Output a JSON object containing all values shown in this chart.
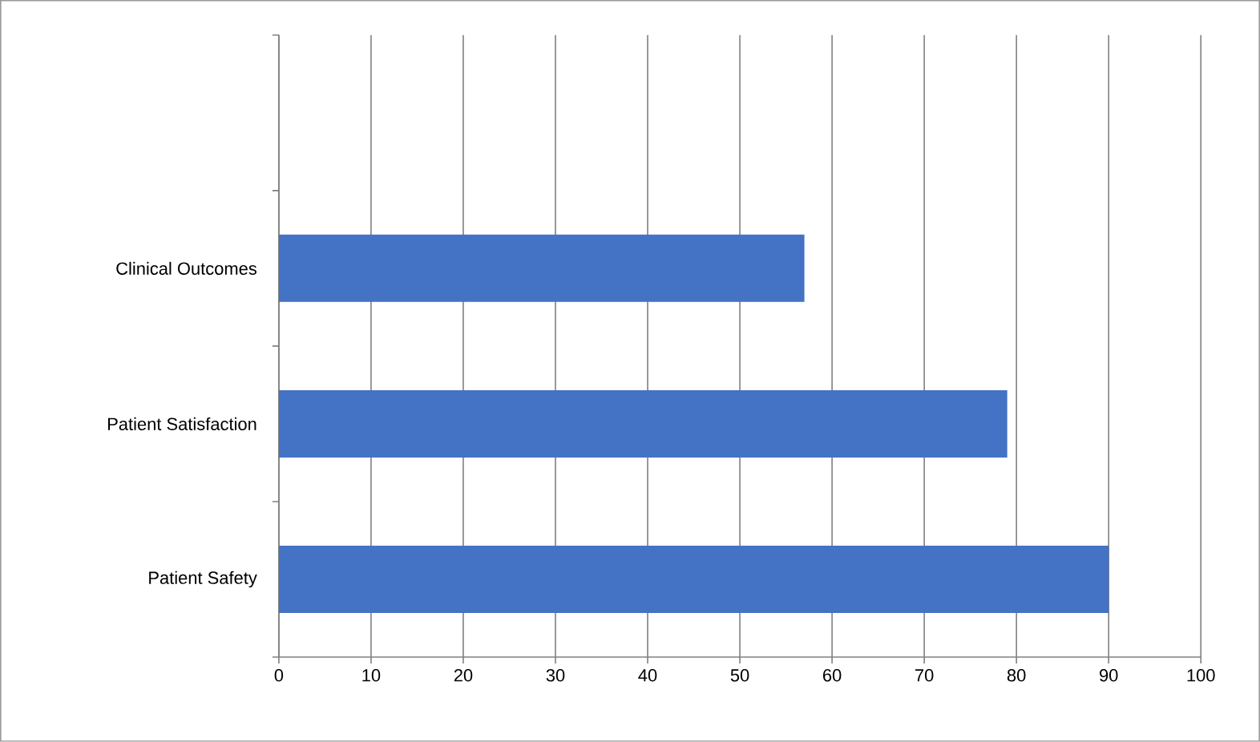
{
  "chart_data": {
    "type": "bar",
    "orientation": "horizontal",
    "categories": [
      null,
      "Clinical Outcomes",
      "Patient Satisfaction",
      "Patient Safety"
    ],
    "values": [
      null,
      57,
      79,
      90
    ],
    "color": "#4472c4",
    "xlim": [
      0,
      100
    ],
    "xticks": [
      0,
      10,
      20,
      30,
      40,
      50,
      60,
      70,
      80,
      90,
      100
    ],
    "grid": "x"
  }
}
